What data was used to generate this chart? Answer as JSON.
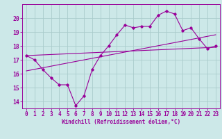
{
  "bg_color": "#cce8e8",
  "line_color": "#990099",
  "grid_color": "#aacccc",
  "spine_color": "#990099",
  "xlim": [
    -0.5,
    23.5
  ],
  "ylim": [
    13.5,
    21.0
  ],
  "xticks": [
    0,
    1,
    2,
    3,
    4,
    5,
    6,
    7,
    8,
    9,
    10,
    11,
    12,
    13,
    14,
    15,
    16,
    17,
    18,
    19,
    20,
    21,
    22,
    23
  ],
  "yticks": [
    14,
    15,
    16,
    17,
    18,
    19,
    20
  ],
  "main_x": [
    0,
    1,
    2,
    3,
    4,
    5,
    6,
    7,
    8,
    9,
    10,
    11,
    12,
    13,
    14,
    15,
    16,
    17,
    18,
    19,
    20,
    21,
    22,
    23
  ],
  "main_y": [
    17.3,
    17.0,
    16.3,
    15.7,
    15.2,
    15.2,
    13.7,
    14.4,
    16.3,
    17.3,
    18.0,
    18.8,
    19.5,
    19.3,
    19.4,
    19.4,
    20.2,
    20.5,
    20.3,
    19.1,
    19.3,
    18.5,
    17.8,
    18.0
  ],
  "line2_x": [
    0,
    23
  ],
  "line2_y": [
    17.3,
    17.9
  ],
  "line3_x": [
    0,
    23
  ],
  "line3_y": [
    16.2,
    18.8
  ],
  "xlabel": "Windchill (Refroidissement éolien,°C)",
  "tick_fontsize": 5.5,
  "label_fontsize": 5.5
}
